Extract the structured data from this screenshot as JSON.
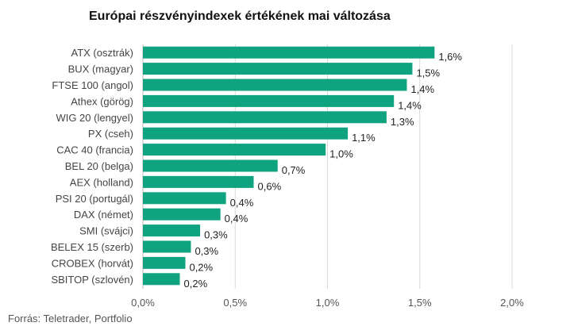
{
  "chart_data": {
    "type": "bar",
    "orientation": "horizontal",
    "title": "Európai részvényindexek értékének mai változása",
    "xlabel": "",
    "ylabel": "",
    "xlim": [
      0,
      2.0
    ],
    "ticks": [
      0,
      0.5,
      1.0,
      1.5,
      2.0
    ],
    "tick_labels": [
      "0,0%",
      "0,5%",
      "1,0%",
      "1,5%",
      "2,0%"
    ],
    "grid": true,
    "bar_color": "#0fa37f",
    "categories": [
      "ATX (osztrák)",
      "BUX (magyar)",
      "FTSE 100 (angol)",
      "Athex (görög)",
      "WIG 20 (lengyel)",
      "PX (cseh)",
      "CAC 40 (francia)",
      "BEL 20 (belga)",
      "AEX (holland)",
      "PSI 20 (portugál)",
      "DAX (német)",
      "SMI (svájci)",
      "BELEX 15 (szerb)",
      "CROBEX (horvát)",
      "SBITOP (szlovén)"
    ],
    "values": [
      1.58,
      1.46,
      1.43,
      1.36,
      1.32,
      1.11,
      0.99,
      0.73,
      0.6,
      0.45,
      0.42,
      0.31,
      0.26,
      0.23,
      0.2
    ],
    "value_labels": [
      "1,6%",
      "1,5%",
      "1,4%",
      "1,4%",
      "1,3%",
      "1,1%",
      "1,0%",
      "0,7%",
      "0,6%",
      "0,4%",
      "0,4%",
      "0,3%",
      "0,3%",
      "0,2%",
      "0,2%"
    ],
    "source": "Forrás: Teletrader, Portfolio"
  }
}
